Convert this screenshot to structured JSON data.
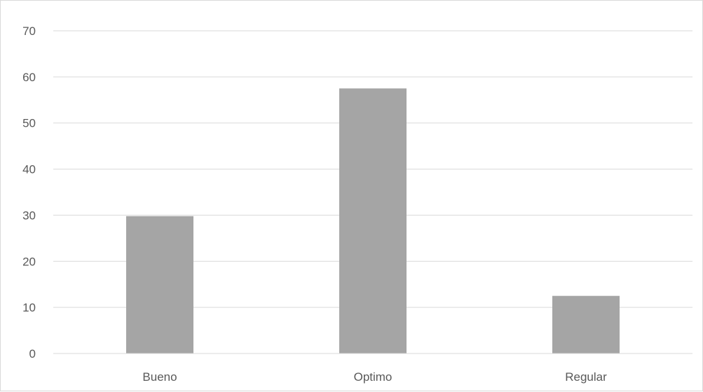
{
  "chart_data": {
    "type": "bar",
    "categories": [
      "Bueno",
      "Optimo",
      "Regular"
    ],
    "series": [
      {
        "values": [
          29.8,
          57.5,
          12.5
        ]
      }
    ],
    "title": "",
    "xlabel": "",
    "ylabel": "",
    "ylim": [
      0,
      70
    ],
    "yticks": [
      0,
      10,
      20,
      30,
      40,
      50,
      60,
      70
    ],
    "grid": true,
    "legend": "none",
    "colors": {
      "bar": "#a5a5a5",
      "grid": "#d9d9d9",
      "axis": "#d9d9d9",
      "text": "#595959",
      "border": "#d9d9d9"
    }
  }
}
